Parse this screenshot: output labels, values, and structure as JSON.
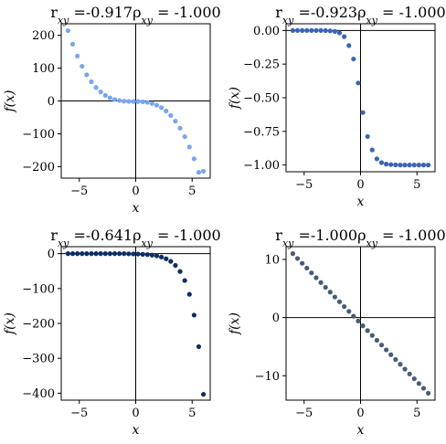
{
  "chart_data": [
    {
      "type": "scatter",
      "title": "r_xy =-0.917ρ_xy = -1.000",
      "xlabel": "x",
      "ylabel": "f(x)",
      "xlim": [
        -6.6,
        6.6
      ],
      "ylim": [
        -235,
        235
      ],
      "xticks": [
        -5,
        0,
        5
      ],
      "xtick_labels": [
        "−5",
        "0",
        "5"
      ],
      "yticks": [
        200,
        100,
        0,
        -100,
        -200
      ],
      "ytick_labels": [
        "200",
        "100",
        "0",
        "−100",
        "−200"
      ],
      "color": "#78a6ee",
      "x": [
        -6.0,
        -5.586,
        -5.172,
        -4.759,
        -4.345,
        -3.931,
        -3.517,
        -3.103,
        -2.69,
        -2.276,
        -1.862,
        -1.448,
        -1.034,
        -0.621,
        -0.207,
        0.207,
        0.621,
        1.034,
        1.448,
        1.862,
        2.276,
        2.69,
        3.103,
        3.517,
        3.931,
        4.345,
        4.759,
        5.172,
        5.586,
        6.0
      ],
      "y": [
        214.0,
        172.9,
        136.8,
        105.5,
        79.6,
        58.3,
        41.0,
        27.4,
        17.1,
        9.6,
        4.4,
        1.2,
        -0.6,
        -1.4,
        -1.6,
        -1.8,
        -2.6,
        -4.4,
        -7.6,
        -12.8,
        -20.3,
        -30.6,
        -44.2,
        -61.5,
        -82.8,
        -108.7,
        -140.0,
        -176.1,
        -217.2,
        -214.0
      ]
    },
    {
      "type": "scatter",
      "title": "r_xy =-0.923ρ_xy = -1.000",
      "xlabel": "x",
      "ylabel": "f(x)",
      "xlim": [
        -6.6,
        6.6
      ],
      "ylim": [
        -1.05,
        0.05
      ],
      "xticks": [
        -5,
        0,
        5
      ],
      "xtick_labels": [
        "−5",
        "0",
        "5"
      ],
      "yticks": [
        0.0,
        -0.25,
        -0.5,
        -0.75,
        -1.0
      ],
      "ytick_labels": [
        "0.00",
        "−0.25",
        "−0.50",
        "−0.75",
        "−1.00"
      ],
      "color": "#3a64b8",
      "x": [
        -6.0,
        -5.586,
        -5.172,
        -4.759,
        -4.345,
        -3.931,
        -3.517,
        -3.103,
        -2.69,
        -2.276,
        -1.862,
        -1.448,
        -1.034,
        -0.621,
        -0.207,
        0.207,
        0.621,
        1.034,
        1.448,
        1.862,
        2.276,
        2.69,
        3.103,
        3.517,
        3.931,
        4.345,
        4.759,
        5.172,
        5.586,
        6.0
      ],
      "y": [
        0.0,
        0.0,
        0.0,
        0.0,
        0.0,
        0.0,
        0.0,
        -0.001,
        -0.003,
        -0.007,
        -0.018,
        -0.046,
        -0.112,
        -0.212,
        -0.39,
        -0.61,
        -0.788,
        -0.888,
        -0.954,
        -0.982,
        -0.993,
        -0.997,
        -0.999,
        -1.0,
        -1.0,
        -1.0,
        -1.0,
        -1.0,
        -1.0,
        -1.0
      ]
    },
    {
      "type": "scatter",
      "title": "r_xy =-0.641ρ_xy = -1.000",
      "xlabel": "x",
      "ylabel": "f(x)",
      "xlim": [
        -6.6,
        6.6
      ],
      "ylim": [
        -420,
        20
      ],
      "xticks": [
        -5,
        0,
        5
      ],
      "xtick_labels": [
        "−5",
        "0",
        "5"
      ],
      "yticks": [
        0,
        -100,
        -200,
        -300,
        -400
      ],
      "ytick_labels": [
        "0",
        "−100",
        "−200",
        "−300",
        "−400"
      ],
      "color": "#0d2d66",
      "x": [
        -6.0,
        -5.586,
        -5.172,
        -4.759,
        -4.345,
        -3.931,
        -3.517,
        -3.103,
        -2.69,
        -2.276,
        -1.862,
        -1.448,
        -1.034,
        -0.621,
        -0.207,
        0.207,
        0.621,
        1.034,
        1.448,
        1.862,
        2.276,
        2.69,
        3.103,
        3.517,
        3.931,
        4.345,
        4.759,
        5.172,
        5.586,
        6.0
      ],
      "y": [
        0.0,
        0.0,
        0.0,
        0.0,
        0.0,
        0.0,
        0.0,
        0.0,
        0.0,
        0.0,
        0.0,
        0.0,
        0.0,
        -0.5,
        -0.8,
        -1.2,
        -1.9,
        -2.8,
        -4.3,
        -6.4,
        -9.7,
        -14.7,
        -22.3,
        -33.7,
        -51.0,
        -77.1,
        -116.6,
        -176.3,
        -266.6,
        -403.4
      ]
    },
    {
      "type": "scatter",
      "title": "r_xy =-1.000ρ_xy = -1.000",
      "xlabel": "x",
      "ylabel": "f(x)",
      "xlim": [
        -6.6,
        6.6
      ],
      "ylim": [
        -14.2,
        12.2
      ],
      "xticks": [
        -5,
        0,
        5
      ],
      "xtick_labels": [
        "−5",
        "0",
        "5"
      ],
      "yticks": [
        10,
        0,
        -10
      ],
      "ytick_labels": [
        "10",
        "0",
        "−10"
      ],
      "color": "#4a5a7a",
      "x": [
        -6.0,
        -5.586,
        -5.172,
        -4.759,
        -4.345,
        -3.931,
        -3.517,
        -3.103,
        -2.69,
        -2.276,
        -1.862,
        -1.448,
        -1.034,
        -0.621,
        -0.207,
        0.207,
        0.621,
        1.034,
        1.448,
        1.862,
        2.276,
        2.69,
        3.103,
        3.517,
        3.931,
        4.345,
        4.759,
        5.172,
        5.586,
        6.0
      ],
      "y": [
        11.0,
        10.17,
        9.34,
        8.52,
        7.69,
        6.86,
        6.03,
        5.21,
        4.38,
        3.55,
        2.72,
        1.9,
        1.07,
        0.24,
        -0.59,
        -1.41,
        -2.24,
        -3.07,
        -3.9,
        -4.72,
        -5.55,
        -6.38,
        -7.21,
        -8.03,
        -8.86,
        -9.69,
        -10.52,
        -11.34,
        -12.17,
        -13.0
      ]
    }
  ]
}
